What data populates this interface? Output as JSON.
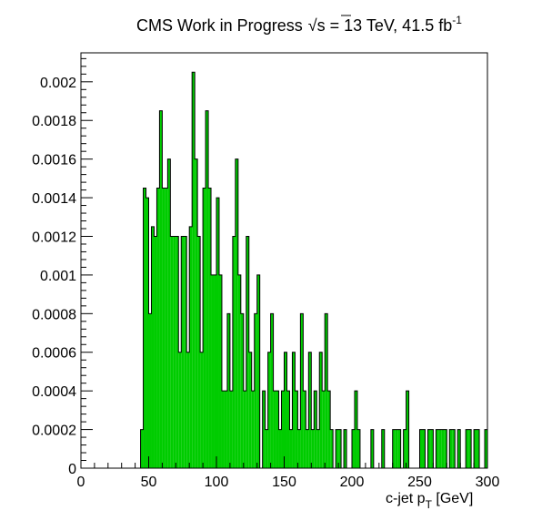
{
  "chart_data": {
    "type": "bar",
    "title": {
      "main": "CMS Work in Progress",
      "energy_sqrt": "√",
      "energy_var": "s",
      "energy_rest": " = 13 TeV, 41.5 fb",
      "lumi_sup": "-1"
    },
    "xlabel": {
      "main": "c-jet p",
      "sub": "T",
      "unit": " [GeV]"
    },
    "ylabel": "",
    "xlim": [
      0,
      300
    ],
    "ylim": [
      0,
      0.00215
    ],
    "bin_width": 2,
    "fill_color": "#00cc00",
    "edge_color": "#000000",
    "x_ticks": [
      {
        "value": 0,
        "label": "0"
      },
      {
        "value": 50,
        "label": "50"
      },
      {
        "value": 100,
        "label": "100"
      },
      {
        "value": 150,
        "label": "150"
      },
      {
        "value": 200,
        "label": "200"
      },
      {
        "value": 250,
        "label": "250"
      },
      {
        "value": 300,
        "label": "300"
      }
    ],
    "y_ticks": [
      {
        "value": 0,
        "label": "0"
      },
      {
        "value": 0.0002,
        "label": "0.0002"
      },
      {
        "value": 0.0004,
        "label": "0.0004"
      },
      {
        "value": 0.0006,
        "label": "0.0006"
      },
      {
        "value": 0.0008,
        "label": "0.0008"
      },
      {
        "value": 0.001,
        "label": "0.001"
      },
      {
        "value": 0.0012,
        "label": "0.0012"
      },
      {
        "value": 0.0014,
        "label": "0.0014"
      },
      {
        "value": 0.0016,
        "label": "0.0016"
      },
      {
        "value": 0.0018,
        "label": "0.0018"
      },
      {
        "value": 0.002,
        "label": "0.002"
      }
    ],
    "bins": [
      {
        "x": 44,
        "y": 0.0002
      },
      {
        "x": 46,
        "y": 0.00145
      },
      {
        "x": 48,
        "y": 0.0014
      },
      {
        "x": 50,
        "y": 0.0008
      },
      {
        "x": 52,
        "y": 0.00125
      },
      {
        "x": 54,
        "y": 0.0012
      },
      {
        "x": 56,
        "y": 0.00145
      },
      {
        "x": 58,
        "y": 0.00185
      },
      {
        "x": 60,
        "y": 0.00145
      },
      {
        "x": 62,
        "y": 0.00145
      },
      {
        "x": 64,
        "y": 0.0016
      },
      {
        "x": 66,
        "y": 0.0012
      },
      {
        "x": 68,
        "y": 0.0012
      },
      {
        "x": 70,
        "y": 0.0012
      },
      {
        "x": 72,
        "y": 0.0006
      },
      {
        "x": 74,
        "y": 0.0012
      },
      {
        "x": 76,
        "y": 0.0012
      },
      {
        "x": 78,
        "y": 0.0006
      },
      {
        "x": 80,
        "y": 0.00125
      },
      {
        "x": 82,
        "y": 0.00205
      },
      {
        "x": 84,
        "y": 0.0016
      },
      {
        "x": 86,
        "y": 0.0012
      },
      {
        "x": 88,
        "y": 0.0006
      },
      {
        "x": 90,
        "y": 0.00145
      },
      {
        "x": 92,
        "y": 0.00185
      },
      {
        "x": 94,
        "y": 0.00145
      },
      {
        "x": 96,
        "y": 0.001
      },
      {
        "x": 98,
        "y": 0.001
      },
      {
        "x": 100,
        "y": 0.0014
      },
      {
        "x": 102,
        "y": 0.001
      },
      {
        "x": 104,
        "y": 0.0004
      },
      {
        "x": 106,
        "y": 0.0004
      },
      {
        "x": 108,
        "y": 0.0008
      },
      {
        "x": 110,
        "y": 0.0004
      },
      {
        "x": 112,
        "y": 0.0012
      },
      {
        "x": 114,
        "y": 0.0016
      },
      {
        "x": 116,
        "y": 0.001
      },
      {
        "x": 118,
        "y": 0.0008
      },
      {
        "x": 120,
        "y": 0.0004
      },
      {
        "x": 122,
        "y": 0.0012
      },
      {
        "x": 124,
        "y": 0.0006
      },
      {
        "x": 126,
        "y": 0.0004
      },
      {
        "x": 128,
        "y": 0.0008
      },
      {
        "x": 130,
        "y": 0.001
      },
      {
        "x": 132,
        "y": 0.0
      },
      {
        "x": 134,
        "y": 0.0004
      },
      {
        "x": 136,
        "y": 0.0002
      },
      {
        "x": 138,
        "y": 0.0006
      },
      {
        "x": 140,
        "y": 0.0008
      },
      {
        "x": 142,
        "y": 0.0004
      },
      {
        "x": 144,
        "y": 0.0004
      },
      {
        "x": 146,
        "y": 0.0002
      },
      {
        "x": 148,
        "y": 0.0004
      },
      {
        "x": 150,
        "y": 0.0006
      },
      {
        "x": 152,
        "y": 0.0004
      },
      {
        "x": 154,
        "y": 0.0002
      },
      {
        "x": 156,
        "y": 0.0006
      },
      {
        "x": 158,
        "y": 0.0004
      },
      {
        "x": 160,
        "y": 0.0002
      },
      {
        "x": 162,
        "y": 0.0008
      },
      {
        "x": 164,
        "y": 0.0004
      },
      {
        "x": 166,
        "y": 0.0002
      },
      {
        "x": 168,
        "y": 0.0006
      },
      {
        "x": 170,
        "y": 0.0002
      },
      {
        "x": 172,
        "y": 0.0004
      },
      {
        "x": 174,
        "y": 0.0002
      },
      {
        "x": 176,
        "y": 0.0006
      },
      {
        "x": 178,
        "y": 0.0004
      },
      {
        "x": 180,
        "y": 0.0008
      },
      {
        "x": 182,
        "y": 0.0004
      },
      {
        "x": 184,
        "y": 0.0002
      },
      {
        "x": 186,
        "y": 0.0
      },
      {
        "x": 188,
        "y": 0.0002
      },
      {
        "x": 190,
        "y": 0.0002
      },
      {
        "x": 192,
        "y": 0.0
      },
      {
        "x": 194,
        "y": 0.0002
      },
      {
        "x": 196,
        "y": 0.0
      },
      {
        "x": 200,
        "y": 0.0002
      },
      {
        "x": 202,
        "y": 0.0004
      },
      {
        "x": 204,
        "y": 0.0002
      },
      {
        "x": 214,
        "y": 0.0002
      },
      {
        "x": 222,
        "y": 0.0002
      },
      {
        "x": 230,
        "y": 0.0002
      },
      {
        "x": 232,
        "y": 0.0002
      },
      {
        "x": 234,
        "y": 0.0002
      },
      {
        "x": 238,
        "y": 0.0002
      },
      {
        "x": 240,
        "y": 0.0004
      },
      {
        "x": 250,
        "y": 0.0002
      },
      {
        "x": 252,
        "y": 0.0002
      },
      {
        "x": 256,
        "y": 0.0002
      },
      {
        "x": 258,
        "y": 0.0002
      },
      {
        "x": 262,
        "y": 0.0002
      },
      {
        "x": 264,
        "y": 0.0002
      },
      {
        "x": 266,
        "y": 0.0002
      },
      {
        "x": 268,
        "y": 0.0002
      },
      {
        "x": 272,
        "y": 0.0002
      },
      {
        "x": 274,
        "y": 0.0002
      },
      {
        "x": 278,
        "y": 0.0002
      },
      {
        "x": 284,
        "y": 0.0002
      },
      {
        "x": 286,
        "y": 0.0002
      },
      {
        "x": 290,
        "y": 0.0002
      },
      {
        "x": 292,
        "y": 0.0002
      },
      {
        "x": 298,
        "y": 0.0002
      }
    ]
  }
}
